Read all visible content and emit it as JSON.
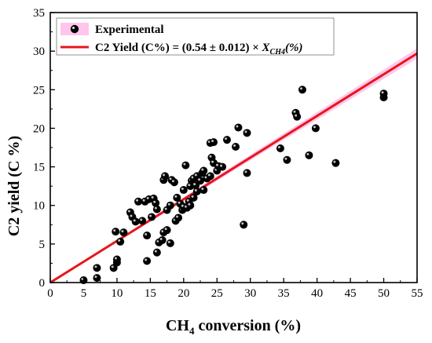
{
  "chart_data": {
    "type": "scatter",
    "xlabel": {
      "main": "CH",
      "sub": "4",
      "rest": " conversion (%)"
    },
    "ylabel": "C2 yield (C %)",
    "xlim": [
      0,
      55
    ],
    "ylim": [
      0,
      35
    ],
    "xticks": [
      0,
      5,
      10,
      15,
      20,
      25,
      30,
      35,
      40,
      45,
      50,
      55
    ],
    "yticks": [
      0,
      5,
      10,
      15,
      20,
      25,
      30,
      35
    ],
    "xtick_labels": [
      "0",
      "5",
      "10",
      "15",
      "20",
      "25",
      "30",
      "35",
      "40",
      "45",
      "50",
      "55"
    ],
    "ytick_labels": [
      "0",
      "5",
      "10",
      "15",
      "20",
      "25",
      "30",
      "35"
    ],
    "grid": false,
    "legend_position": "top-left",
    "legend": {
      "points_label": "Experimental",
      "fit_prefix": "C2 Yield (C%) = (0.54 ± 0.012) × ",
      "fit_var": "X",
      "fit_var_sub": "CH4",
      "fit_suffix": "(%)"
    },
    "colors": {
      "points": "#000000",
      "fit_line": "#e8151b",
      "fit_band": "#ffb6e6"
    },
    "fit": {
      "slope": 0.54,
      "slope_error": 0.012,
      "x_range": [
        0,
        55
      ]
    },
    "series": [
      {
        "name": "Experimental",
        "points": [
          [
            5,
            0.3
          ],
          [
            7,
            0.6
          ],
          [
            7,
            1.9
          ],
          [
            9.5,
            1.9
          ],
          [
            10,
            2.6
          ],
          [
            10,
            3.0
          ],
          [
            9.8,
            6.6
          ],
          [
            10.5,
            5.3
          ],
          [
            11,
            6.5
          ],
          [
            12,
            9.1
          ],
          [
            12.3,
            8.5
          ],
          [
            12.8,
            7.9
          ],
          [
            13.2,
            10.5
          ],
          [
            13.8,
            8.0
          ],
          [
            14.2,
            10.5
          ],
          [
            14.5,
            2.8
          ],
          [
            14.5,
            6.1
          ],
          [
            14.8,
            10.8
          ],
          [
            15.2,
            8.5
          ],
          [
            15.5,
            10.9
          ],
          [
            15.8,
            10.3
          ],
          [
            16,
            3.9
          ],
          [
            16,
            9.5
          ],
          [
            16.3,
            5.2
          ],
          [
            16.8,
            5.5
          ],
          [
            17,
            6.5
          ],
          [
            17,
            13.3
          ],
          [
            17.2,
            13.8
          ],
          [
            17.5,
            6.8
          ],
          [
            17.5,
            9.4
          ],
          [
            18,
            5.1
          ],
          [
            18,
            10.0
          ],
          [
            18.2,
            13.3
          ],
          [
            18.6,
            13.0
          ],
          [
            18.8,
            8.0
          ],
          [
            19,
            11.0
          ],
          [
            19.2,
            8.4
          ],
          [
            19.5,
            10.2
          ],
          [
            19.8,
            9.4
          ],
          [
            20,
            9.8
          ],
          [
            20,
            12.0
          ],
          [
            20.3,
            15.2
          ],
          [
            20.5,
            9.7
          ],
          [
            20.8,
            10.5
          ],
          [
            21,
            12.5
          ],
          [
            21,
            10.0
          ],
          [
            21.2,
            13.2
          ],
          [
            21.5,
            11.0
          ],
          [
            21.5,
            13.5
          ],
          [
            21.8,
            12.6
          ],
          [
            22,
            11.8
          ],
          [
            22,
            13.8
          ],
          [
            22.5,
            13.2
          ],
          [
            22.8,
            14.2
          ],
          [
            23,
            12.0
          ],
          [
            23,
            14.5
          ],
          [
            23.5,
            13.5
          ],
          [
            24,
            13.8
          ],
          [
            24,
            18.1
          ],
          [
            24.2,
            16.2
          ],
          [
            24.5,
            15.5
          ],
          [
            24.5,
            18.2
          ],
          [
            25,
            14.5
          ],
          [
            25.2,
            15.1
          ],
          [
            25.8,
            15.0
          ],
          [
            26.5,
            18.5
          ],
          [
            27.8,
            17.6
          ],
          [
            28.2,
            20.1
          ],
          [
            29,
            7.5
          ],
          [
            29.5,
            14.2
          ],
          [
            29.5,
            19.4
          ],
          [
            34.5,
            17.4
          ],
          [
            35.5,
            15.9
          ],
          [
            36.8,
            22.0
          ],
          [
            37,
            21.5
          ],
          [
            37.8,
            25.0
          ],
          [
            38.8,
            16.5
          ],
          [
            39.8,
            20.0
          ],
          [
            42.8,
            15.5
          ],
          [
            50,
            24.0
          ],
          [
            50,
            24.5
          ]
        ]
      }
    ]
  }
}
